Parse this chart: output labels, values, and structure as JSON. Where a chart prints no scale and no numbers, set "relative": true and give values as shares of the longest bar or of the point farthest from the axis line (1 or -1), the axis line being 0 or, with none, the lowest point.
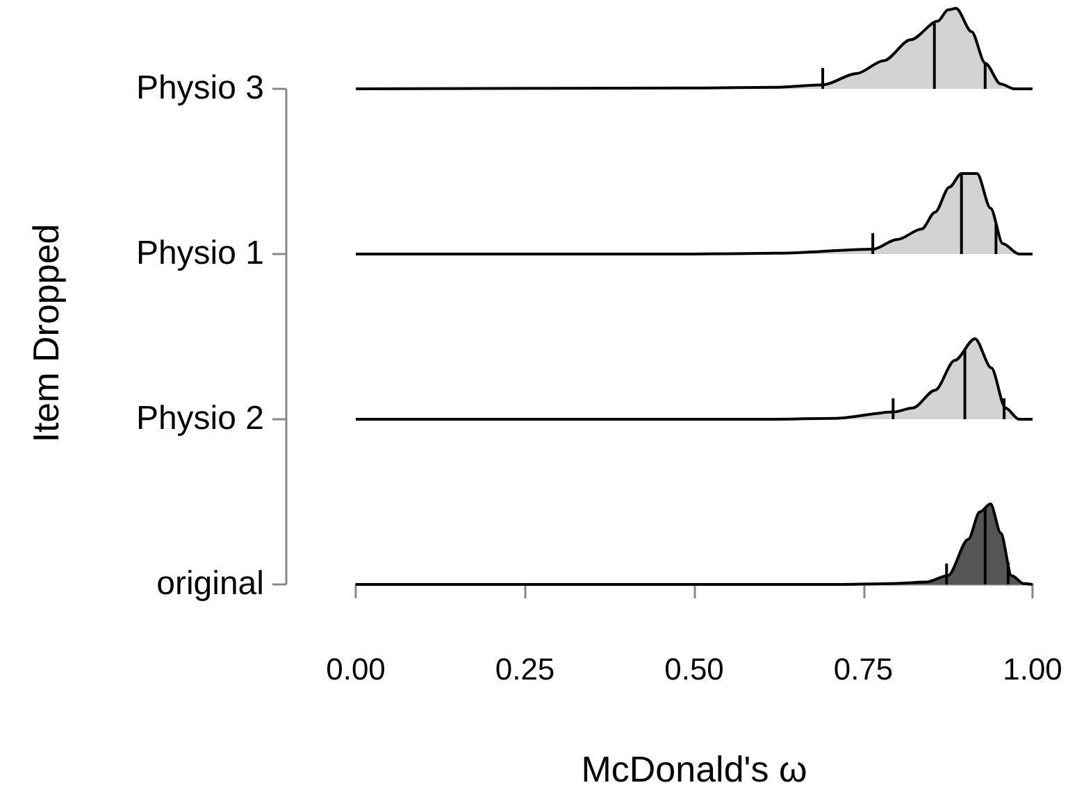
{
  "chart_data": [
    {
      "type": "area",
      "relative": true,
      "ylabel": "Physio 3",
      "annotations": [
        "Item Dropped"
      ],
      "color": "#d3d3d3",
      "tick_labels": false,
      "xlim": [
        0,
        1.0
      ],
      "x": [
        0,
        0.5,
        0.62,
        0.69,
        0.74,
        0.78,
        0.82,
        0.86,
        0.875,
        0.887,
        0.91,
        0.93,
        0.953,
        0.973,
        1.0
      ],
      "values": [
        0,
        0.01,
        0.02,
        0.05,
        0.19,
        0.35,
        0.61,
        0.84,
        0.98,
        1,
        0.71,
        0.32,
        0.06,
        0,
        0
      ],
      "ref_lines": [
        {
          "axis": "x",
          "value": 0.69,
          "color": "#000000"
        },
        {
          "axis": "x",
          "value": 0.855,
          "color": "#000000"
        },
        {
          "axis": "x",
          "value": 0.93,
          "color": "#000000"
        }
      ]
    },
    {
      "type": "area",
      "relative": true,
      "ylabel": "Physio 1",
      "color": "#d3d3d3",
      "tick_labels": false,
      "xlim": [
        0,
        1.0
      ],
      "x": [
        0,
        0.5,
        0.62,
        0.764,
        0.8,
        0.836,
        0.856,
        0.877,
        0.895,
        0.918,
        0.938,
        0.956,
        0.98,
        1.0
      ],
      "values": [
        0,
        0,
        0.01,
        0.06,
        0.18,
        0.31,
        0.52,
        0.83,
        1,
        1,
        0.57,
        0.13,
        0,
        0
      ],
      "ref_lines": [
        {
          "axis": "x",
          "value": 0.764,
          "color": "#000000"
        },
        {
          "axis": "x",
          "value": 0.895,
          "color": "#000000"
        },
        {
          "axis": "x",
          "value": 0.946,
          "color": "#000000"
        }
      ]
    },
    {
      "type": "area",
      "relative": true,
      "ylabel": "Physio 2",
      "color": "#d3d3d3",
      "tick_labels": false,
      "xlim": [
        0,
        1.0
      ],
      "x": [
        0,
        0.6,
        0.706,
        0.795,
        0.823,
        0.856,
        0.885,
        0.915,
        0.939,
        0.96,
        0.98,
        1.0
      ],
      "values": [
        0,
        0,
        0.01,
        0.09,
        0.14,
        0.36,
        0.73,
        1,
        0.64,
        0.14,
        0,
        0
      ],
      "ref_lines": [
        {
          "axis": "x",
          "value": 0.794,
          "color": "#000000"
        },
        {
          "axis": "x",
          "value": 0.9,
          "color": "#000000"
        },
        {
          "axis": "x",
          "value": 0.958,
          "color": "#000000"
        }
      ]
    },
    {
      "type": "area",
      "relative": true,
      "ylabel": "original",
      "xlabel": "McDonald's ω",
      "color": "#555555",
      "tick_labels": "x",
      "xlim": [
        0,
        1.0
      ],
      "xticks": [
        {
          "value": 0,
          "label": "0.00"
        },
        {
          "value": 0.25,
          "label": "0.25"
        },
        {
          "value": 0.5,
          "label": "0.50"
        },
        {
          "value": 0.75,
          "label": "0.75"
        },
        {
          "value": 1,
          "label": "1.00"
        }
      ],
      "x": [
        0,
        0.7,
        0.789,
        0.843,
        0.875,
        0.905,
        0.922,
        0.938,
        0.953,
        0.969,
        0.987,
        1.0
      ],
      "values": [
        0,
        0,
        0.01,
        0.03,
        0.11,
        0.56,
        0.9,
        1,
        0.64,
        0.11,
        0.01,
        0
      ],
      "ref_lines": [
        {
          "axis": "x",
          "value": 0.873,
          "color": "#000000"
        },
        {
          "axis": "x",
          "value": 0.93,
          "color": "#000000"
        },
        {
          "axis": "x",
          "value": 0.964,
          "color": "#000000"
        }
      ]
    }
  ]
}
